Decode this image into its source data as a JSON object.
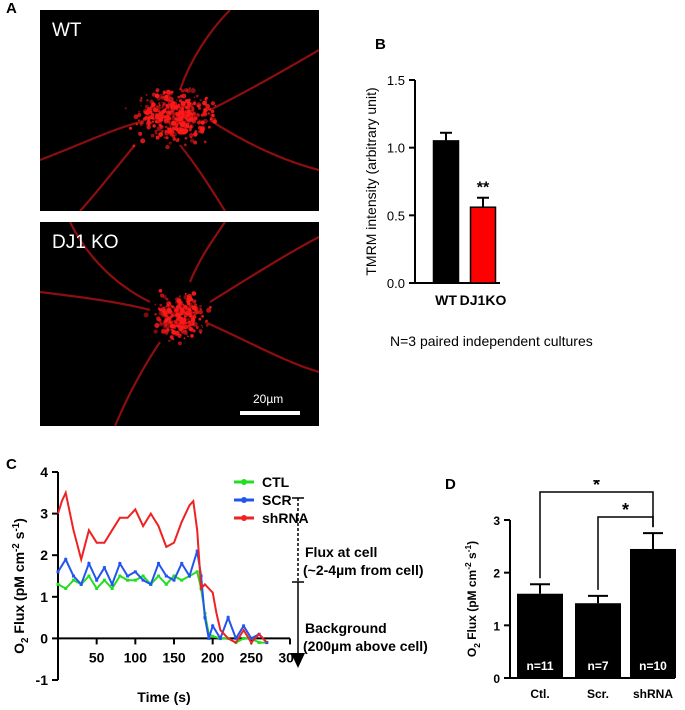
{
  "panels": {
    "a": {
      "letter": "A",
      "top_label": "WT",
      "bottom_label": "DJ1 KO",
      "scale_bar": "20µm"
    },
    "b": {
      "letter": "B",
      "caption": "N=3 paired independent cultures"
    },
    "c": {
      "letter": "C"
    },
    "d": {
      "letter": "D"
    }
  },
  "colors": {
    "ctl": "#22dd22",
    "scr": "#2255ee",
    "shrna": "#ee2222",
    "wt": "#000000",
    "dj1ko": "#ff0000",
    "micro": "#ff1a1a"
  },
  "chart_data": [
    {
      "id": "B",
      "type": "bar",
      "ylabel": "TMRM intensity (arbitrary unit)",
      "categories": [
        "WT",
        "DJ1KO"
      ],
      "values": [
        1.05,
        0.56
      ],
      "errors": [
        0.06,
        0.07
      ],
      "bar_colors": [
        "#000000",
        "#ff0000"
      ],
      "ylim": [
        0,
        1.5
      ],
      "yticks": [
        "0.0",
        "0.5",
        "1.0",
        "1.5"
      ],
      "significance": [
        {
          "category": "DJ1KO",
          "label": "**"
        }
      ]
    },
    {
      "id": "C",
      "type": "line",
      "xlabel": "Time (s)",
      "ylabel": {
        "main": "O",
        "sub": "2",
        "rest": " Flux (pM cm",
        "sup1": "-2",
        "mid": " s",
        "sup2": "-1",
        "end": ")"
      },
      "xlim": [
        0,
        300
      ],
      "ylim": [
        -1,
        4
      ],
      "xticks": [
        "50",
        "100",
        "150",
        "200",
        "250",
        "300"
      ],
      "yticks": [
        "-1",
        "0",
        "1",
        "2",
        "3",
        "4"
      ],
      "series": [
        {
          "name": "CTL",
          "color": "#22dd22",
          "x": [
            0,
            10,
            20,
            30,
            40,
            50,
            60,
            70,
            80,
            90,
            100,
            110,
            120,
            130,
            140,
            150,
            160,
            170,
            180,
            185,
            190,
            195,
            200,
            210,
            220,
            230,
            240,
            250,
            260,
            270
          ],
          "y": [
            1.3,
            1.2,
            1.4,
            1.3,
            1.5,
            1.2,
            1.4,
            1.2,
            1.5,
            1.4,
            1.4,
            1.5,
            1.3,
            1.5,
            1.3,
            1.5,
            1.4,
            1.5,
            1.6,
            1.2,
            0.6,
            0.1,
            0.05,
            0.0,
            0.0,
            -0.1,
            0.0,
            0.0,
            -0.1,
            -0.1
          ]
        },
        {
          "name": "SCR",
          "color": "#2255ee",
          "x": [
            0,
            10,
            20,
            30,
            40,
            50,
            60,
            70,
            80,
            90,
            100,
            110,
            120,
            130,
            140,
            150,
            160,
            170,
            180,
            185,
            190,
            195,
            200,
            210,
            220,
            230,
            240,
            250,
            260,
            270
          ],
          "y": [
            1.6,
            1.9,
            1.5,
            1.3,
            1.8,
            1.4,
            1.7,
            1.3,
            1.8,
            1.5,
            1.6,
            1.4,
            1.3,
            1.8,
            1.5,
            1.4,
            1.8,
            1.5,
            2.1,
            1.5,
            0.5,
            0.0,
            0.3,
            0.0,
            0.5,
            0.0,
            0.3,
            0.0,
            0.1,
            -0.1
          ]
        },
        {
          "name": "shRNA",
          "color": "#ee2222",
          "x": [
            0,
            5,
            10,
            20,
            30,
            40,
            50,
            60,
            70,
            80,
            90,
            100,
            110,
            120,
            130,
            140,
            150,
            160,
            170,
            175,
            180,
            185,
            190,
            195,
            200,
            205,
            210,
            220,
            230,
            240,
            250,
            260,
            270
          ],
          "y": [
            3.0,
            3.3,
            3.5,
            2.6,
            1.9,
            2.6,
            2.3,
            2.3,
            2.6,
            2.9,
            2.9,
            3.1,
            2.7,
            3.0,
            2.7,
            2.2,
            2.3,
            2.8,
            3.2,
            3.3,
            2.6,
            1.2,
            1.3,
            1.2,
            1.1,
            0.6,
            0.2,
            0.0,
            -0.1,
            0.2,
            -0.1,
            0.1,
            -0.1
          ]
        }
      ],
      "annotations": {
        "flux_line1": "Flux at cell",
        "flux_line2": "(~2-4µm from cell)",
        "bg_line1": "Background",
        "bg_line2": "(200µm above cell)"
      }
    },
    {
      "id": "D",
      "type": "bar",
      "ylabel": {
        "main": "O",
        "sub": "2",
        "rest": " Flux (pM cm",
        "sup1": "-2",
        "mid": " s",
        "sup2": "-1",
        "end": ")"
      },
      "categories": [
        "Ctl.",
        "Scr.",
        "shRNA"
      ],
      "values": [
        1.6,
        1.42,
        2.45
      ],
      "errors": [
        0.18,
        0.14,
        0.3
      ],
      "n_labels": [
        "n=11",
        "n=7",
        "n=10"
      ],
      "ylim": [
        0,
        3
      ],
      "yticks": [
        "0",
        "1",
        "2",
        "3"
      ],
      "significance": [
        {
          "from": "Ctl.",
          "to": "shRNA",
          "label": "*"
        },
        {
          "from": "Scr.",
          "to": "shRNA",
          "label": "*"
        }
      ]
    }
  ]
}
